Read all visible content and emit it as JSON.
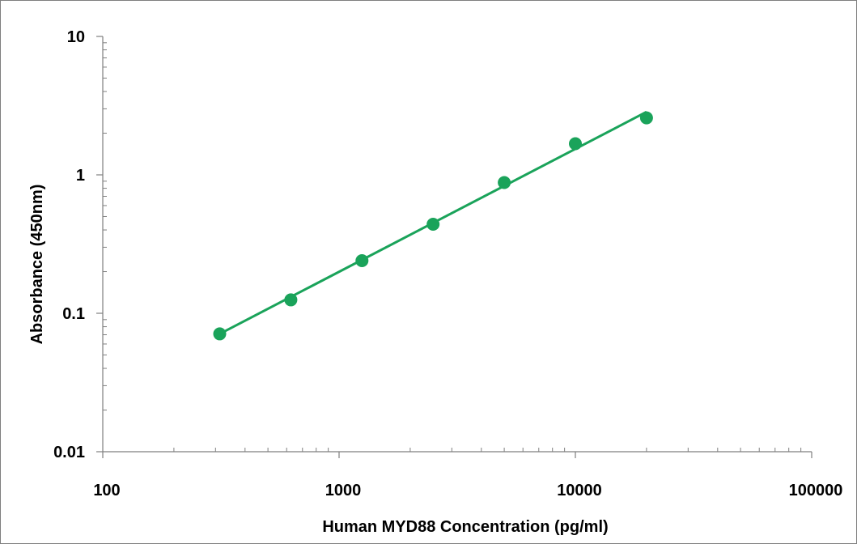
{
  "chart_data": {
    "type": "scatter",
    "title": "",
    "xlabel": "Human MYD88 Concentration (pg/ml)",
    "ylabel": "Absorbance (450nm)",
    "x_scale": "log",
    "y_scale": "log",
    "xlim": [
      100,
      100000
    ],
    "ylim": [
      0.01,
      10
    ],
    "x_ticks": [
      "100",
      "1000",
      "10000",
      "100000"
    ],
    "y_ticks": [
      "10",
      "1",
      "0.1",
      "0.01"
    ],
    "grid": false,
    "legend": "none",
    "colors": {
      "series": "#1aa35a",
      "axis": "#7f7f7f"
    },
    "series": [
      {
        "x": [
          312.5,
          625,
          1250,
          2500,
          5000,
          10000,
          20000
        ],
        "y": [
          0.071,
          0.125,
          0.24,
          0.44,
          0.88,
          1.68,
          2.58
        ]
      }
    ],
    "trendline": {
      "type": "power",
      "x_range": [
        312.5,
        20000
      ],
      "y_range": [
        0.071,
        2.85
      ]
    }
  }
}
